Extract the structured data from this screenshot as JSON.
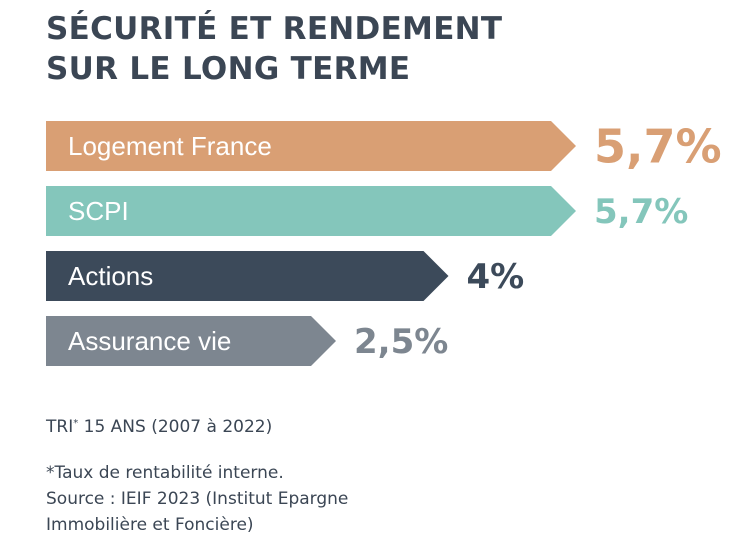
{
  "title": {
    "line1": "SÉCURITÉ ET RENDEMENT",
    "line2": "SUR LE LONG TERME"
  },
  "chart_data": {
    "type": "bar",
    "orientation": "horizontal",
    "categories": [
      "Logement France",
      "SCPI",
      "Actions",
      "Assurance vie"
    ],
    "values": [
      5.7,
      5.7,
      4,
      2.5
    ],
    "value_labels": [
      "5,7%",
      "5,7%",
      "4%",
      "2,5%"
    ],
    "unit": "%",
    "colors": [
      "#d99f74",
      "#84c6bb",
      "#3c4a5a",
      "#7d8690"
    ],
    "value_label_colors": [
      "#d99f74",
      "#84c6bb",
      "#3c4a5a",
      "#7d8690"
    ],
    "title": "SÉCURITÉ ET RENDEMENT SUR LE LONG TERME"
  },
  "footer": {
    "period_main": "TRI",
    "period_marker": "*",
    "period_rest": " 15 ANS (2007 à 2022)",
    "note1": "*Taux de rentabilité interne.",
    "note2": "Source : IEIF 2023 (Institut Epargne",
    "note3": "Immobilière et Foncière)"
  }
}
